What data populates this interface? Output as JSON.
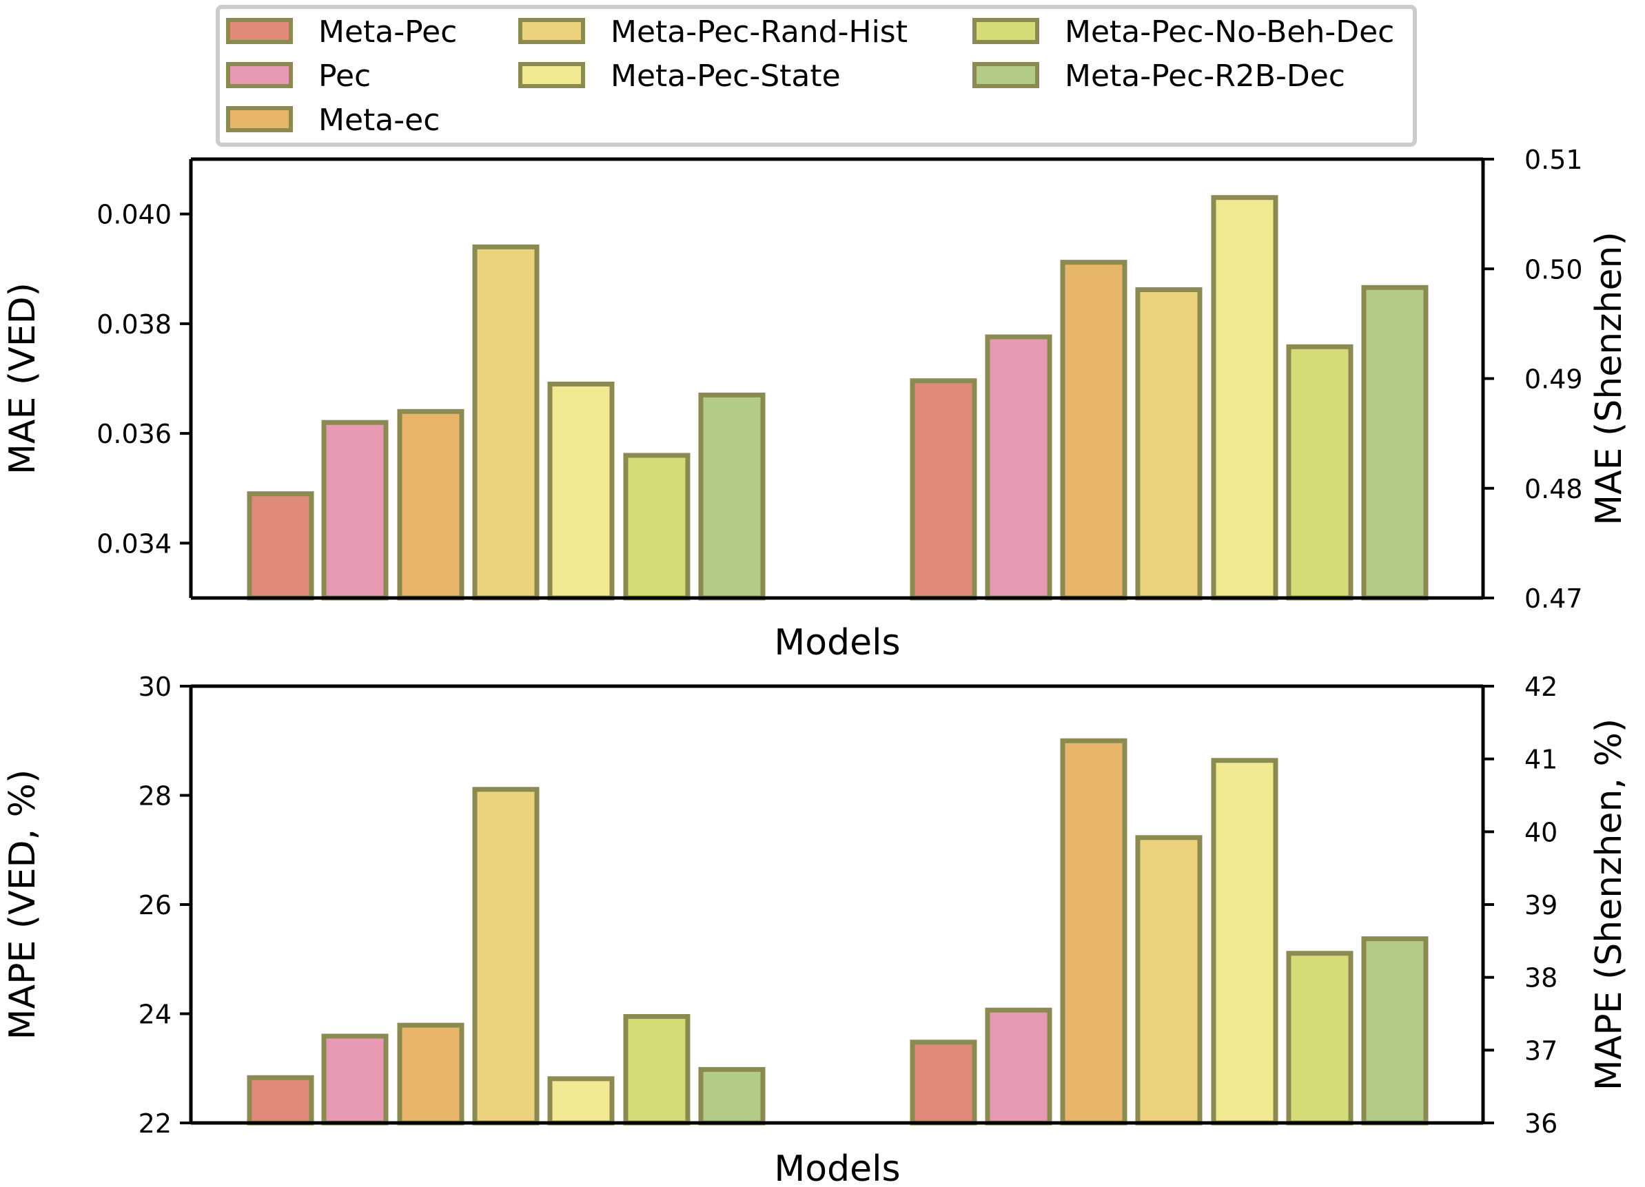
{
  "legend": {
    "placement": "top-center",
    "entries": [
      {
        "label": "Meta-Pec",
        "color": "#e08a7a"
      },
      {
        "label": "Pec",
        "color": "#e89ab5"
      },
      {
        "label": "Meta-ec",
        "color": "#e8b66a"
      },
      {
        "label": "Meta-Pec-Rand-Hist",
        "color": "#ecd27c"
      },
      {
        "label": "Meta-Pec-State",
        "color": "#f1e892"
      },
      {
        "label": "Meta-Pec-No-Beh-Dec",
        "color": "#d4dc78"
      },
      {
        "label": "Meta-Pec-R2B-Dec",
        "color": "#b2cc88"
      }
    ]
  },
  "style": {
    "bar_edge_color": "#8b8a50"
  },
  "chart_data": [
    {
      "type": "bar",
      "xlabel": "Models",
      "ylabel_left": "MAE (VED)",
      "ylabel_right": "MAE (Shenzhen)",
      "ylim_left": [
        0.033,
        0.041
      ],
      "ylim_right": [
        0.47,
        0.51
      ],
      "yticks_left": [
        "0.034",
        "0.036",
        "0.038",
        "0.040"
      ],
      "yticks_right": [
        "0.47",
        "0.48",
        "0.49",
        "0.50",
        "0.51"
      ],
      "grid": false,
      "groups": [
        {
          "axis": "left",
          "values": [
            0.0349,
            0.0362,
            0.0364,
            0.0394,
            0.0369,
            0.0356,
            0.0367
          ]
        },
        {
          "axis": "right",
          "values": [
            0.4898,
            0.4938,
            0.5006,
            0.4981,
            0.5065,
            0.4929,
            0.4983
          ]
        }
      ]
    },
    {
      "type": "bar",
      "xlabel": "Models",
      "ylabel_left": "MAPE (VED, %)",
      "ylabel_right": "MAPE (Shenzhen, %)",
      "ylim_left": [
        22,
        30
      ],
      "ylim_right": [
        36,
        42
      ],
      "yticks_left": [
        "22",
        "24",
        "26",
        "28",
        "30"
      ],
      "yticks_right": [
        "36",
        "37",
        "38",
        "39",
        "40",
        "41",
        "42"
      ],
      "grid": false,
      "groups": [
        {
          "axis": "left",
          "values": [
            22.83,
            23.59,
            23.79,
            28.11,
            22.81,
            23.95,
            22.98
          ]
        },
        {
          "axis": "right",
          "values": [
            37.11,
            37.55,
            41.25,
            39.92,
            40.98,
            38.33,
            38.53
          ]
        }
      ]
    }
  ]
}
